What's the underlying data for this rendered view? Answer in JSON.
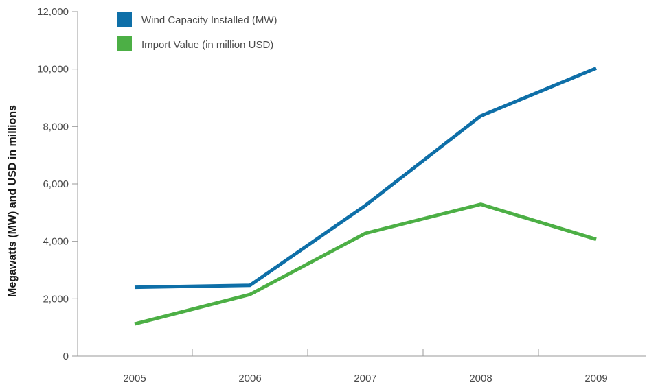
{
  "chart_data": {
    "type": "line",
    "title": "",
    "xlabel": "",
    "ylabel": "Megawatts (MW) and USD in millions",
    "categories": [
      "2005",
      "2006",
      "2007",
      "2008",
      "2009"
    ],
    "ylim": [
      0,
      12000
    ],
    "yticks": [
      "0",
      "2,000",
      "4,000",
      "6,000",
      "8,000",
      "10,000",
      "12,000"
    ],
    "ytick_values": [
      0,
      2000,
      4000,
      6000,
      8000,
      10000,
      12000
    ],
    "grid": false,
    "legend_position": "top-left",
    "series": [
      {
        "name": "Wind Capacity Installed (MW)",
        "color": "#0e6fa8",
        "values": [
          2400,
          2470,
          5250,
          8370,
          10030
        ]
      },
      {
        "name": "Import Value (in million USD)",
        "color": "#4caf45",
        "values": [
          1120,
          2150,
          4280,
          5290,
          4070
        ]
      }
    ]
  }
}
